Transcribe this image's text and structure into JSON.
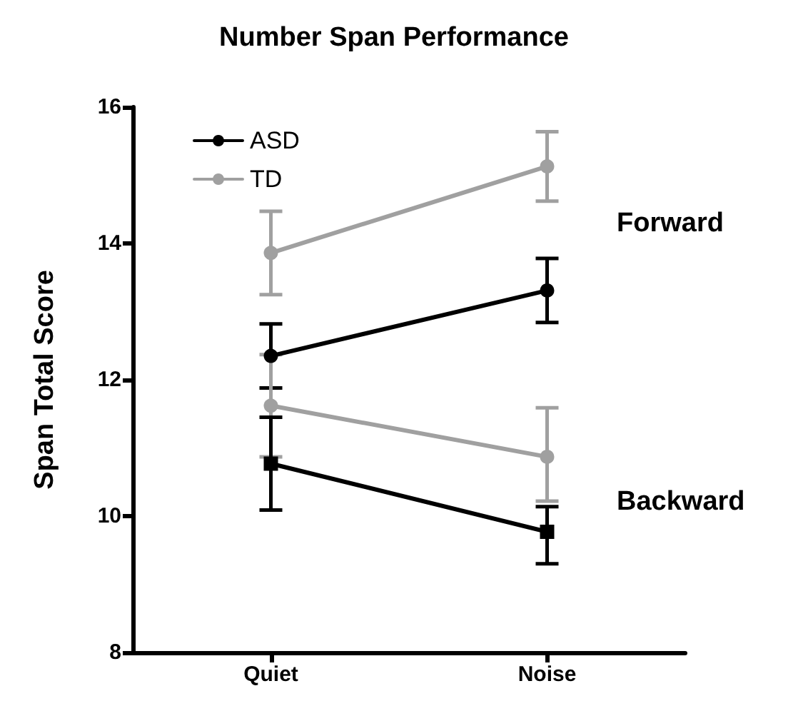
{
  "chart_data": {
    "type": "line",
    "title": "Number Span Performance",
    "ylabel": "Span Total Score",
    "categories": [
      "Quiet",
      "Noise"
    ],
    "series": [
      {
        "name": "ASD",
        "color": "#000000",
        "marker": "circle",
        "values": [
          12.35,
          13.31
        ],
        "errors": [
          [
            11.88,
            12.82
          ],
          [
            12.84,
            13.78
          ]
        ]
      },
      {
        "name": "TD",
        "color": "#a0a0a0",
        "marker": "circle",
        "values": [
          13.86,
          15.13
        ],
        "errors": [
          [
            13.25,
            14.47
          ],
          [
            14.62,
            15.64
          ]
        ]
      },
      {
        "color": "#a0a0a0",
        "marker": "circle",
        "values": [
          11.62,
          10.87
        ],
        "errors": [
          [
            10.87,
            12.37
          ],
          [
            10.22,
            11.59
          ]
        ]
      },
      {
        "color": "#000000",
        "marker": "square",
        "values": [
          10.77,
          9.77
        ],
        "errors": [
          [
            10.09,
            11.45
          ],
          [
            9.3,
            10.14
          ]
        ]
      }
    ],
    "ylim": [
      8,
      16
    ],
    "yticks": [
      8,
      10,
      12,
      14,
      16
    ],
    "grid": false,
    "legend": "top left",
    "annotations": [
      "Forward",
      "Backward"
    ]
  }
}
